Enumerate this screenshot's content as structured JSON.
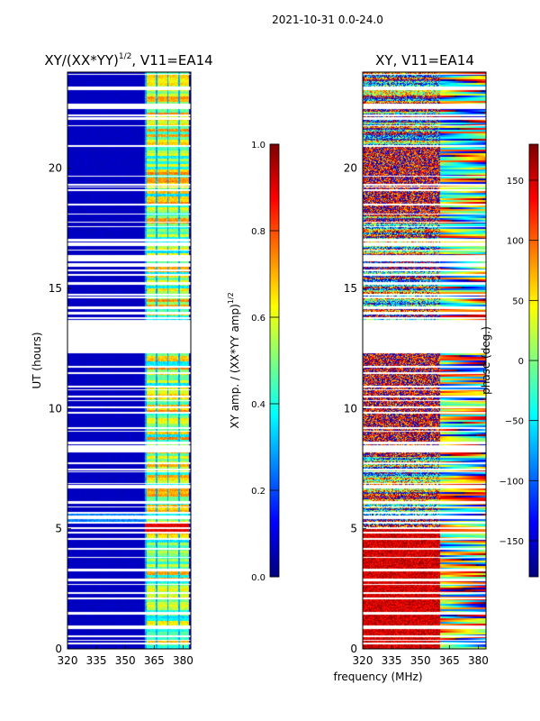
{
  "suptitle": "2021-10-31 0.0-24.0",
  "shared_xlabel": "frequency (MHz)",
  "chart_data": [
    {
      "type": "heatmap",
      "title_main": "XY/(XX*YY)",
      "title_sup": "1/2",
      "title_tail": ", V11=EA14",
      "xlabel": "frequency (MHz)",
      "ylabel": "UT (hours)",
      "xlim": [
        320,
        384
      ],
      "ylim": [
        0,
        24
      ],
      "xticks": [
        "320",
        "335",
        "350",
        "365",
        "380"
      ],
      "xtick_values": [
        320,
        335,
        350,
        365,
        380
      ],
      "yticks": [
        "0",
        "5",
        "10",
        "15",
        "20"
      ],
      "ytick_values": [
        0,
        5,
        10,
        15,
        20
      ],
      "colormap": "jet",
      "colorbar": {
        "label_main": "XY amp. / (XX*YY amp)",
        "label_sup": "1/2",
        "range": [
          0.0,
          1.0
        ],
        "ticks": [
          "0.0",
          "0.2",
          "0.4",
          "0.6",
          "0.8",
          "1.0"
        ],
        "tick_values": [
          0.0,
          0.2,
          0.4,
          0.6,
          0.8,
          1.0
        ]
      },
      "description_values": {
        "background_level": 0.05,
        "active_band_mhz": [
          360,
          383
        ],
        "active_level_range": [
          0.3,
          0.75
        ]
      }
    },
    {
      "type": "heatmap",
      "title": "XY, V11=EA14",
      "xlabel": "frequency (MHz)",
      "ylabel": "",
      "xlim": [
        320,
        384
      ],
      "ylim": [
        0,
        24
      ],
      "xticks": [
        "320",
        "335",
        "350",
        "365",
        "380"
      ],
      "xtick_values": [
        320,
        335,
        350,
        365,
        380
      ],
      "yticks": [
        "0",
        "5",
        "10",
        "15",
        "20"
      ],
      "ytick_values": [
        0,
        5,
        10,
        15,
        20
      ],
      "colormap": "jet",
      "colorbar": {
        "label": "phase (deg.)",
        "range": [
          -180,
          180
        ],
        "ticks": [
          "−150",
          "−100",
          "−50",
          "0",
          "50",
          "100",
          "150"
        ],
        "tick_values": [
          -150,
          -100,
          -50,
          0,
          50,
          100,
          150
        ]
      }
    }
  ]
}
